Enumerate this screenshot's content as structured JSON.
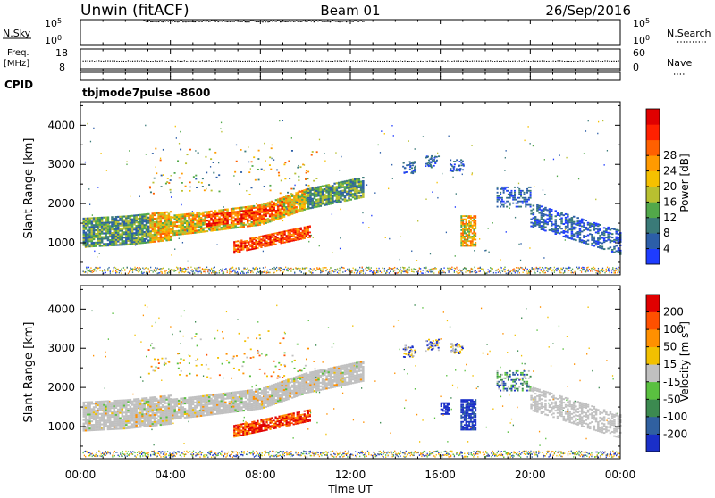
{
  "header": {
    "station": "Unwin (fitACF)",
    "beam": "Beam 01",
    "date": "26/Sep/2016"
  },
  "strips": {
    "nsky_label": "N.Sky",
    "nsky_ticks": [
      "10^5",
      "10^0"
    ],
    "nsearch_label": "N.Search",
    "nsearch_ticks": [
      "10^5",
      "10^0"
    ],
    "freq_label": "Freq.",
    "freq_unit": "[MHz]",
    "freq_ticks": [
      "18",
      "8"
    ],
    "nave_label": "Nave",
    "nave_ticks": [
      "60",
      "0"
    ],
    "cpid_label": "CPID",
    "cpid_value": "tbjmode7pulse -8600"
  },
  "colors": {
    "ground_scatter": "#c0c0c0",
    "axis": "#000000"
  },
  "chart_data": [
    {
      "type": "heatmap",
      "panel": "power",
      "xlabel": "Time UT",
      "ylabel": "Slant Range [km]",
      "xlim": [
        "00:00",
        "24:00"
      ],
      "ylim": [
        180,
        4600
      ],
      "x_ticks": [
        "00:00",
        "04:00",
        "08:00",
        "12:00",
        "16:00",
        "20:00",
        "00:00"
      ],
      "y_ticks": [
        1000,
        2000,
        3000,
        4000
      ],
      "colorbar": {
        "label": "Power [dB]",
        "ticks": [
          "4",
          "8",
          "12",
          "16",
          "20",
          "24",
          "28"
        ],
        "colors": [
          "#1e3cff",
          "#2c5ea8",
          "#3a7a78",
          "#52a84a",
          "#b8c030",
          "#f5c000",
          "#ff9a00",
          "#ff6000",
          "#ff2000",
          "#e00000"
        ]
      },
      "regions": [
        {
          "t0": 0.1,
          "t1": 12.6,
          "r0": 850,
          "r1": 1750,
          "level": "weak-medium, strongest 6-9 UT"
        },
        {
          "t0": 5.5,
          "t1": 9.0,
          "r0": 1300,
          "r1": 1700,
          "level": "strong (24-28 dB)"
        },
        {
          "t0": 6.8,
          "t1": 10.2,
          "r0": 700,
          "r1": 1200,
          "level": "strong (20-28 dB)"
        },
        {
          "t0": 9.0,
          "t1": 12.6,
          "r0": 1900,
          "r1": 2600,
          "level": "medium (8-16 dB)"
        },
        {
          "t0": 16.9,
          "t1": 17.5,
          "r0": 900,
          "r1": 1700,
          "level": "medium (16-24 dB)"
        },
        {
          "t0": 19.0,
          "t1": 24.0,
          "r0": 900,
          "r1": 2400,
          "level": "weak (4-8 dB)"
        }
      ]
    },
    {
      "type": "heatmap",
      "panel": "velocity",
      "xlabel": "Time UT",
      "ylabel": "Slant Range [km]",
      "xlim": [
        "00:00",
        "24:00"
      ],
      "ylim": [
        180,
        4600
      ],
      "x_ticks": [
        "00:00",
        "04:00",
        "08:00",
        "12:00",
        "16:00",
        "20:00",
        "00:00"
      ],
      "y_ticks": [
        1000,
        2000,
        3000,
        4000
      ],
      "colorbar": {
        "label": "Velocity [m s^-1]",
        "ticks": [
          "200",
          "100",
          "50",
          "15",
          "-15",
          "-50",
          "-100",
          "-200"
        ],
        "colors": [
          "#1a2fc8",
          "#3060a0",
          "#3c8a50",
          "#5ac040",
          "#c0c0c0",
          "#f2c000",
          "#ff9000",
          "#ff5000",
          "#e00000"
        ]
      },
      "regions": [
        {
          "t0": 0.1,
          "t1": 12.6,
          "r0": 850,
          "r1": 1750,
          "level": "ground scatter (grey)"
        },
        {
          "t0": 6.8,
          "t1": 9.5,
          "r0": 700,
          "r1": 1200,
          "level": "-50 to -200 m/s (orange-red)"
        },
        {
          "t0": 16.0,
          "t1": 17.6,
          "r0": 900,
          "r1": 1700,
          "level": "+200 m/s (blue)"
        },
        {
          "t0": 18.5,
          "t1": 19.8,
          "r0": 1900,
          "r1": 2400,
          "level": "+50 to +200 m/s (mixed)"
        }
      ]
    }
  ]
}
